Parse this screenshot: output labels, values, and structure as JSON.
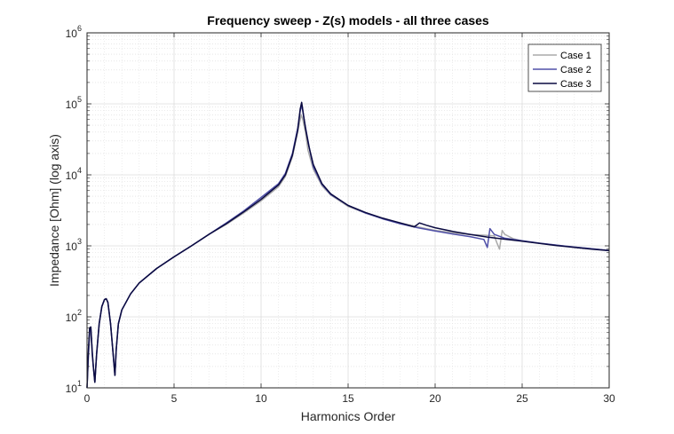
{
  "chart_data": {
    "type": "line",
    "title": "Frequency sweep - Z(s) models - all three cases",
    "xlabel": "Harmonics Order",
    "ylabel": "Impedance [Ohm] (log axis)",
    "xlim": [
      0,
      30
    ],
    "ylim": [
      10,
      1000000
    ],
    "yscale": "log",
    "grid": true,
    "minor_grid": true,
    "legend_position": "top-right",
    "x_ticks": [
      "0",
      "5",
      "10",
      "15",
      "20",
      "25",
      "30"
    ],
    "y_ticks": [
      {
        "base": "10",
        "exp": "1"
      },
      {
        "base": "10",
        "exp": "2"
      },
      {
        "base": "10",
        "exp": "3"
      },
      {
        "base": "10",
        "exp": "4"
      },
      {
        "base": "10",
        "exp": "5"
      },
      {
        "base": "10",
        "exp": "6"
      }
    ],
    "series": [
      {
        "name": "Case 1",
        "color": "#aaaaaa",
        "points": [
          [
            0,
            10
          ],
          [
            0.08,
            28
          ],
          [
            0.15,
            55
          ],
          [
            0.22,
            60
          ],
          [
            0.3,
            28
          ],
          [
            0.36,
            20
          ],
          [
            0.45,
            12
          ],
          [
            0.55,
            30
          ],
          [
            0.7,
            80
          ],
          [
            0.85,
            140
          ],
          [
            1.0,
            175
          ],
          [
            1.1,
            180
          ],
          [
            1.2,
            160
          ],
          [
            1.35,
            80
          ],
          [
            1.5,
            30
          ],
          [
            1.6,
            15
          ],
          [
            1.68,
            35
          ],
          [
            1.8,
            80
          ],
          [
            2.0,
            125
          ],
          [
            2.5,
            210
          ],
          [
            3,
            300
          ],
          [
            4,
            480
          ],
          [
            5,
            700
          ],
          [
            6,
            1000
          ],
          [
            7,
            1450
          ],
          [
            8,
            2000
          ],
          [
            9,
            2900
          ],
          [
            10,
            4300
          ],
          [
            10.5,
            5400
          ],
          [
            11,
            6800
          ],
          [
            11.4,
            9500
          ],
          [
            11.8,
            18000
          ],
          [
            12.1,
            40000
          ],
          [
            12.3,
            70000
          ],
          [
            12.4,
            60000
          ],
          [
            12.55,
            40000
          ],
          [
            12.7,
            22000
          ],
          [
            13.0,
            12000
          ],
          [
            13.5,
            7000
          ],
          [
            14,
            5200
          ],
          [
            15,
            3600
          ],
          [
            16,
            2900
          ],
          [
            17,
            2400
          ],
          [
            18,
            2100
          ],
          [
            19,
            1850
          ],
          [
            20,
            1650
          ],
          [
            21,
            1530
          ],
          [
            22,
            1440
          ],
          [
            23,
            1400
          ],
          [
            23.4,
            1380
          ],
          [
            23.55,
            1100
          ],
          [
            23.7,
            900
          ],
          [
            23.85,
            1650
          ],
          [
            24.0,
            1450
          ],
          [
            24.5,
            1260
          ],
          [
            25,
            1170
          ],
          [
            26,
            1090
          ],
          [
            27,
            1020
          ],
          [
            28,
            960
          ],
          [
            29,
            910
          ],
          [
            30,
            860
          ]
        ]
      },
      {
        "name": "Case 2",
        "color": "#5050a8",
        "points": [
          [
            0,
            10
          ],
          [
            0.08,
            30
          ],
          [
            0.15,
            62
          ],
          [
            0.22,
            68
          ],
          [
            0.3,
            30
          ],
          [
            0.36,
            20
          ],
          [
            0.45,
            12
          ],
          [
            0.55,
            30
          ],
          [
            0.7,
            80
          ],
          [
            0.85,
            140
          ],
          [
            1.0,
            175
          ],
          [
            1.1,
            180
          ],
          [
            1.2,
            160
          ],
          [
            1.35,
            80
          ],
          [
            1.5,
            30
          ],
          [
            1.6,
            15
          ],
          [
            1.68,
            35
          ],
          [
            1.8,
            80
          ],
          [
            2.0,
            125
          ],
          [
            2.5,
            210
          ],
          [
            3,
            300
          ],
          [
            4,
            480
          ],
          [
            5,
            700
          ],
          [
            6,
            1000
          ],
          [
            7,
            1450
          ],
          [
            8,
            2100
          ],
          [
            9,
            3100
          ],
          [
            10,
            4800
          ],
          [
            10.5,
            6000
          ],
          [
            11,
            7500
          ],
          [
            11.4,
            10500
          ],
          [
            11.8,
            20000
          ],
          [
            12.1,
            45000
          ],
          [
            12.25,
            80000
          ],
          [
            12.35,
            95000
          ],
          [
            12.45,
            65000
          ],
          [
            12.6,
            40000
          ],
          [
            12.8,
            22000
          ],
          [
            13.0,
            13000
          ],
          [
            13.5,
            7300
          ],
          [
            14,
            5300
          ],
          [
            15,
            3700
          ],
          [
            16,
            2900
          ],
          [
            17,
            2400
          ],
          [
            18,
            2050
          ],
          [
            19,
            1800
          ],
          [
            20,
            1620
          ],
          [
            21,
            1470
          ],
          [
            22,
            1350
          ],
          [
            22.8,
            1230
          ],
          [
            23.0,
            950
          ],
          [
            23.15,
            1750
          ],
          [
            23.4,
            1450
          ],
          [
            24,
            1280
          ],
          [
            25,
            1180
          ],
          [
            26,
            1090
          ],
          [
            27,
            1020
          ],
          [
            28,
            960
          ],
          [
            29,
            910
          ],
          [
            30,
            860
          ]
        ]
      },
      {
        "name": "Case 3",
        "color": "#0a0a40",
        "points": [
          [
            0,
            10
          ],
          [
            0.08,
            35
          ],
          [
            0.15,
            70
          ],
          [
            0.22,
            72
          ],
          [
            0.3,
            32
          ],
          [
            0.36,
            20
          ],
          [
            0.45,
            12
          ],
          [
            0.55,
            30
          ],
          [
            0.7,
            80
          ],
          [
            0.85,
            140
          ],
          [
            1.0,
            175
          ],
          [
            1.1,
            180
          ],
          [
            1.2,
            160
          ],
          [
            1.35,
            80
          ],
          [
            1.5,
            30
          ],
          [
            1.6,
            15
          ],
          [
            1.68,
            35
          ],
          [
            1.8,
            80
          ],
          [
            2.0,
            125
          ],
          [
            2.5,
            210
          ],
          [
            3,
            300
          ],
          [
            4,
            480
          ],
          [
            5,
            700
          ],
          [
            6,
            1000
          ],
          [
            7,
            1450
          ],
          [
            8,
            2050
          ],
          [
            9,
            3000
          ],
          [
            10,
            4500
          ],
          [
            10.5,
            5700
          ],
          [
            11,
            7200
          ],
          [
            11.4,
            10000
          ],
          [
            11.8,
            19000
          ],
          [
            12.1,
            42000
          ],
          [
            12.25,
            85000
          ],
          [
            12.33,
            105000
          ],
          [
            12.42,
            75000
          ],
          [
            12.55,
            45000
          ],
          [
            12.75,
            25000
          ],
          [
            13.0,
            14000
          ],
          [
            13.5,
            7500
          ],
          [
            14,
            5400
          ],
          [
            15,
            3700
          ],
          [
            16,
            2950
          ],
          [
            17,
            2450
          ],
          [
            18,
            2100
          ],
          [
            18.8,
            1850
          ],
          [
            19.1,
            2100
          ],
          [
            19.5,
            1950
          ],
          [
            20,
            1800
          ],
          [
            21,
            1600
          ],
          [
            22,
            1450
          ],
          [
            23,
            1330
          ],
          [
            24,
            1240
          ],
          [
            25,
            1160
          ],
          [
            26,
            1080
          ],
          [
            27,
            1010
          ],
          [
            28,
            950
          ],
          [
            29,
            900
          ],
          [
            30,
            855
          ]
        ]
      }
    ]
  }
}
